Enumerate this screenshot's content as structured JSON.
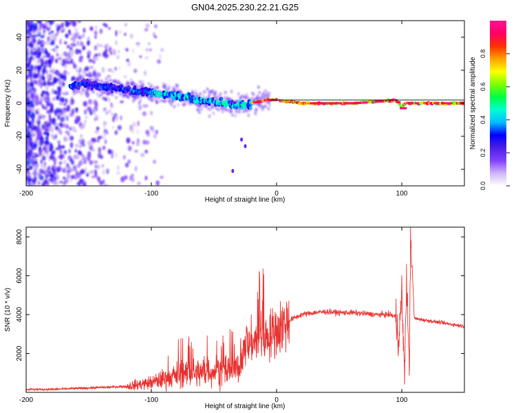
{
  "title": "GN04.2025.230.22.21.G25",
  "chart_data": [
    {
      "type": "heatmap",
      "xlabel": "Height of straight line (km)",
      "ylabel": "Frequency (Hz)",
      "xlim": [
        -200,
        150
      ],
      "ylim": [
        -50,
        50
      ],
      "xticks": [
        "-200",
        "-100",
        "0",
        "100"
      ],
      "yticks": [
        "40",
        "20",
        "0",
        "-20",
        "-40"
      ],
      "ridge": {
        "x": [
          -165,
          -155,
          -140,
          -125,
          -110,
          -95,
          -80,
          -65,
          -50,
          -35,
          -25,
          -15,
          -8,
          0,
          20,
          40,
          60,
          80,
          95,
          98,
          100,
          103,
          110,
          150
        ],
        "y": [
          10,
          12,
          10,
          9,
          7,
          6,
          5,
          2,
          1,
          -1,
          -1,
          1,
          2,
          2,
          0,
          0,
          0,
          1,
          2,
          0,
          -3,
          0,
          0,
          0
        ]
      },
      "colorbar": {
        "label": "Normalized spectral amplitude",
        "range": [
          0.0,
          1.0
        ],
        "ticks": [
          "0.0",
          "0.2",
          "0.4",
          "0.6",
          "0.8"
        ],
        "colors": [
          "#ffffff",
          "#cfb5f5",
          "#8040ff",
          "#4b1fe6",
          "#0000ff",
          "#00bfff",
          "#00ffd0",
          "#00ff40",
          "#7fff00",
          "#ffff00",
          "#ffa000",
          "#ff3000",
          "#ff0066",
          "#ff1493"
        ]
      }
    },
    {
      "type": "line",
      "xlabel": "Height of straight line (km)",
      "ylabel": "SNR (10 * v/v)",
      "xlim": [
        -200,
        150
      ],
      "ylim": [
        0,
        8500
      ],
      "xticks": [
        "-200",
        "-100",
        "0",
        "100"
      ],
      "yticks": [
        "8000",
        "6000",
        "4000",
        "2000"
      ],
      "series": [
        {
          "color": "#e8312f",
          "x": [
            -200,
            -180,
            -160,
            -140,
            -120,
            -110,
            -100,
            -90,
            -80,
            -70,
            -60,
            -50,
            -40,
            -30,
            -25,
            -20,
            -15,
            -10,
            -5,
            0,
            10,
            20,
            30,
            40,
            50,
            60,
            70,
            80,
            90,
            95,
            98,
            100,
            102,
            104,
            106,
            107,
            110,
            120,
            130,
            140,
            150
          ],
          "y": [
            150,
            150,
            200,
            250,
            300,
            400,
            500,
            700,
            900,
            1000,
            1000,
            1100,
            1100,
            1200,
            2300,
            2600,
            2700,
            2800,
            3000,
            3200,
            3700,
            4000,
            4100,
            4150,
            4100,
            4100,
            4050,
            4000,
            4000,
            3900,
            2800,
            5200,
            800,
            6000,
            600,
            8400,
            3800,
            3700,
            3600,
            3500,
            3400
          ]
        }
      ]
    }
  ]
}
